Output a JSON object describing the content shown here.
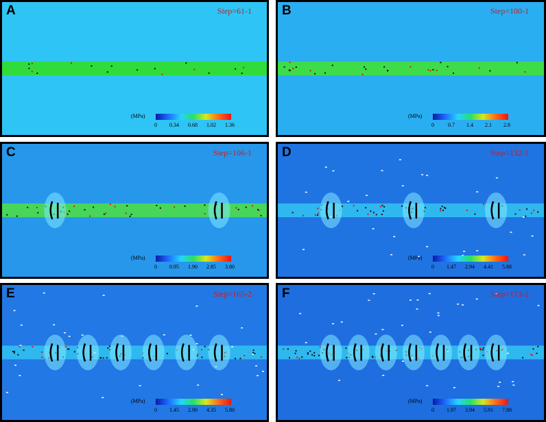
{
  "panels": [
    {
      "letter": "A",
      "step": "Step=61-1",
      "unit": "(MPa)",
      "ticks": [
        "0",
        "0.34",
        "0.68",
        "1.02",
        "1.36"
      ],
      "bg": "#2ec4f5",
      "band": "#2fdc3c",
      "cracks": 0
    },
    {
      "letter": "B",
      "step": "Step=100-1",
      "unit": "(MPa)",
      "ticks": [
        "0",
        "0.7",
        "1.4",
        "2.1",
        "2.8"
      ],
      "bg": "#2aaef2",
      "band": "#3fdc4a",
      "cracks": 0
    },
    {
      "letter": "C",
      "step": "Step=106-1",
      "unit": "(MPa)",
      "ticks": [
        "0",
        "0.95",
        "1.90",
        "2.85",
        "3.80"
      ],
      "bg": "#2797ec",
      "band": "#48d65a",
      "cracks": 2
    },
    {
      "letter": "D",
      "step": "Step=132-1",
      "unit": "(MPa)",
      "ticks": [
        "0",
        "1.47",
        "2.94",
        "4.41",
        "5.88"
      ],
      "bg": "#2074e2",
      "band": "#2fb8f0",
      "cracks": 3
    },
    {
      "letter": "E",
      "step": "Step=165-2",
      "unit": "(MPa)",
      "ticks": [
        "0",
        "1.45",
        "2.90",
        "4.35",
        "5.80"
      ],
      "bg": "#2278e4",
      "band": "#2fb8f0",
      "cracks": 6
    },
    {
      "letter": "F",
      "step": "Step=173-2",
      "unit": "(MPa)",
      "ticks": [
        "0",
        "1.97",
        "3.94",
        "5.91",
        "7.88"
      ],
      "bg": "#1e6ee0",
      "band": "#2fb8f0",
      "cracks": 7
    }
  ]
}
